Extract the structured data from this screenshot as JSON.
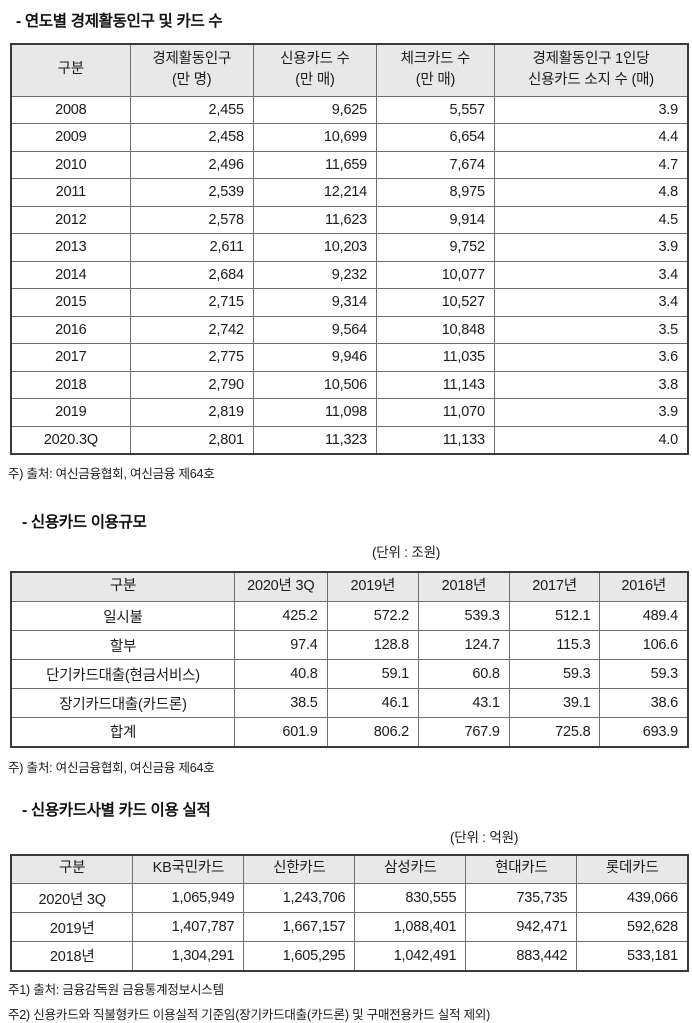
{
  "colors": {
    "page_bg": "#ffffff",
    "header_bg": "#e8e8e8",
    "border_outer": "#3a3a3a",
    "border_inner": "#6f6f6f",
    "text": "#1c1c1c"
  },
  "sections": [
    {
      "title": "- 연도별 경제활동인구 및 카드 수",
      "unit_label": "",
      "table": {
        "header": [
          [
            "구분"
          ],
          [
            "경제활동인구",
            "(만 명)"
          ],
          [
            "신용카드 수",
            "(만 매)"
          ],
          [
            "체크카드 수",
            "(만 매)"
          ],
          [
            "경제활동인구 1인당",
            "신용카드 소지 수 (매)"
          ]
        ],
        "rows": [
          [
            "2008",
            "2,455",
            "9,625",
            "5,557",
            "3.9"
          ],
          [
            "2009",
            "2,458",
            "10,699",
            "6,654",
            "4.4"
          ],
          [
            "2010",
            "2,496",
            "11,659",
            "7,674",
            "4.7"
          ],
          [
            "2011",
            "2,539",
            "12,214",
            "8,975",
            "4.8"
          ],
          [
            "2012",
            "2,578",
            "11,623",
            "9,914",
            "4.5"
          ],
          [
            "2013",
            "2,611",
            "10,203",
            "9,752",
            "3.9"
          ],
          [
            "2014",
            "2,684",
            "9,232",
            "10,077",
            "3.4"
          ],
          [
            "2015",
            "2,715",
            "9,314",
            "10,527",
            "3.4"
          ],
          [
            "2016",
            "2,742",
            "9,564",
            "10,848",
            "3.5"
          ],
          [
            "2017",
            "2,775",
            "9,946",
            "11,035",
            "3.6"
          ],
          [
            "2018",
            "2,790",
            "10,506",
            "11,143",
            "3.8"
          ],
          [
            "2019",
            "2,819",
            "11,098",
            "11,070",
            "3.9"
          ],
          [
            "2020.3Q",
            "2,801",
            "11,323",
            "11,133",
            "4.0"
          ]
        ]
      },
      "notes": [
        "주) 출처: 여신금융협회, 여신금융 제64호"
      ]
    },
    {
      "title": "- 신용카드 이용규모",
      "unit_label": "(단위 : 조원)",
      "table": {
        "header": [
          [
            "구분"
          ],
          [
            "2020년 3Q"
          ],
          [
            "2019년"
          ],
          [
            "2018년"
          ],
          [
            "2017년"
          ],
          [
            "2016년"
          ]
        ],
        "rows": [
          [
            "일시불",
            "425.2",
            "572.2",
            "539.3",
            "512.1",
            "489.4"
          ],
          [
            "할부",
            "97.4",
            "128.8",
            "124.7",
            "115.3",
            "106.6"
          ],
          [
            "단기카드대출(현금서비스)",
            "40.8",
            "59.1",
            "60.8",
            "59.3",
            "59.3"
          ],
          [
            "장기카드대출(카드론)",
            "38.5",
            "46.1",
            "43.1",
            "39.1",
            "38.6"
          ],
          [
            "합계",
            "601.9",
            "806.2",
            "767.9",
            "725.8",
            "693.9"
          ]
        ]
      },
      "notes": [
        "주) 출처: 여신금융협회, 여신금융 제64호"
      ]
    },
    {
      "title": "- 신용카드사별 카드 이용 실적",
      "unit_label": "(단위 : 억원)",
      "table": {
        "header": [
          [
            "구분"
          ],
          [
            "KB국민카드"
          ],
          [
            "신한카드"
          ],
          [
            "삼성카드"
          ],
          [
            "현대카드"
          ],
          [
            "롯데카드"
          ]
        ],
        "rows": [
          [
            "2020년 3Q",
            "1,065,949",
            "1,243,706",
            "830,555",
            "735,735",
            "439,066"
          ],
          [
            "2019년",
            "1,407,787",
            "1,667,157",
            "1,088,401",
            "942,471",
            "592,628"
          ],
          [
            "2018년",
            "1,304,291",
            "1,605,295",
            "1,042,491",
            "883,442",
            "533,181"
          ]
        ]
      },
      "notes": [
        "주1) 출처: 금융감독원 금융통계정보시스템",
        "주2) 신용카드와 직불형카드 이용실적 기준임(장기카드대출(카드론) 및 구매전용카드 실적 제외)"
      ]
    }
  ]
}
